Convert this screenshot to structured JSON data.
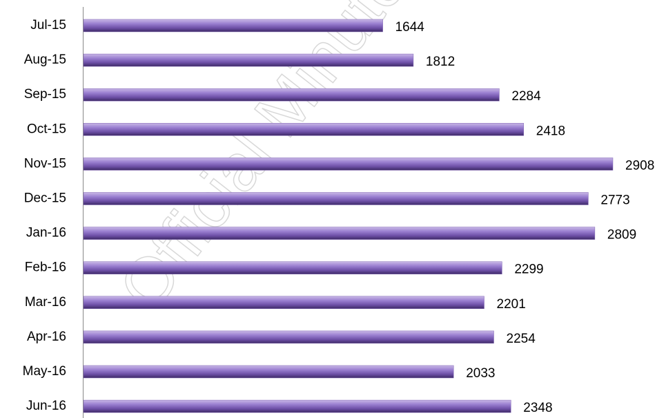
{
  "chart_data": {
    "type": "bar",
    "orientation": "horizontal",
    "categories": [
      "Jul-15",
      "Aug-15",
      "Sep-15",
      "Oct-15",
      "Nov-15",
      "Dec-15",
      "Jan-16",
      "Feb-16",
      "Mar-16",
      "Apr-16",
      "May-16",
      "Jun-16"
    ],
    "values": [
      1644,
      1812,
      2284,
      2418,
      2908,
      2773,
      2809,
      2299,
      2201,
      2254,
      2033,
      2348
    ],
    "color": "#7e62b3",
    "watermark": "Official Minutes of"
  }
}
